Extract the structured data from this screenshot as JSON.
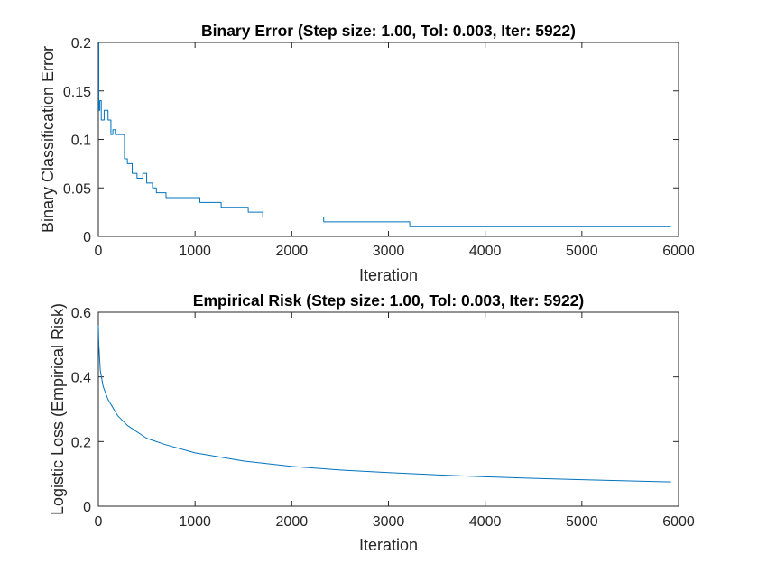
{
  "figure": {
    "background": "#ffffff",
    "axis_color": "#262626",
    "line_color": "#0072BD"
  },
  "chart_data": [
    {
      "type": "line",
      "title": "Binary Error (Step size: 1.00, Tol: 0.003, Iter: 5922)",
      "xlabel": "Iteration",
      "ylabel": "Binary Classification Error",
      "xlim": [
        0,
        6000
      ],
      "ylim": [
        0,
        0.2
      ],
      "xticks": [
        0,
        1000,
        2000,
        3000,
        4000,
        5000,
        6000
      ],
      "xtick_labels": [
        "0",
        "1000",
        "2000",
        "3000",
        "4000",
        "5000",
        "6000"
      ],
      "yticks": [
        0,
        0.05,
        0.1,
        0.15,
        0.2
      ],
      "ytick_labels": [
        "0",
        "0.05",
        "0.1",
        "0.15",
        "0.2"
      ],
      "grid": false,
      "legend": "none",
      "step": true,
      "series": [
        {
          "color": "#0072BD",
          "x": [
            0,
            5,
            15,
            30,
            60,
            100,
            130,
            150,
            175,
            200,
            270,
            300,
            350,
            400,
            460,
            500,
            560,
            600,
            700,
            1050,
            1270,
            1550,
            1700,
            2330,
            3220,
            5922
          ],
          "y": [
            0.2,
            0.13,
            0.14,
            0.12,
            0.13,
            0.12,
            0.105,
            0.11,
            0.105,
            0.105,
            0.08,
            0.075,
            0.065,
            0.06,
            0.065,
            0.055,
            0.05,
            0.045,
            0.04,
            0.035,
            0.03,
            0.025,
            0.02,
            0.015,
            0.01,
            0.01
          ]
        }
      ]
    },
    {
      "type": "line",
      "title": "Empirical Risk (Step size: 1.00, Tol: 0.003, Iter: 5922)",
      "xlabel": "Iteration",
      "ylabel": "Logistic Loss (Empirical Risk)",
      "xlim": [
        0,
        6000
      ],
      "ylim": [
        0,
        0.6
      ],
      "xticks": [
        0,
        1000,
        2000,
        3000,
        4000,
        5000,
        6000
      ],
      "xtick_labels": [
        "0",
        "1000",
        "2000",
        "3000",
        "4000",
        "5000",
        "6000"
      ],
      "yticks": [
        0,
        0.2,
        0.4,
        0.6
      ],
      "ytick_labels": [
        "0",
        "0.2",
        "0.4",
        "0.6"
      ],
      "grid": false,
      "legend": "none",
      "step": false,
      "series": [
        {
          "color": "#0072BD",
          "x": [
            0,
            5,
            20,
            50,
            100,
            200,
            300,
            500,
            700,
            1000,
            1500,
            2000,
            2500,
            3000,
            3500,
            4000,
            4500,
            5000,
            5500,
            5922
          ],
          "y": [
            0.56,
            0.5,
            0.42,
            0.37,
            0.33,
            0.28,
            0.25,
            0.21,
            0.19,
            0.165,
            0.14,
            0.123,
            0.112,
            0.104,
            0.097,
            0.091,
            0.086,
            0.082,
            0.078,
            0.075
          ]
        }
      ]
    }
  ]
}
